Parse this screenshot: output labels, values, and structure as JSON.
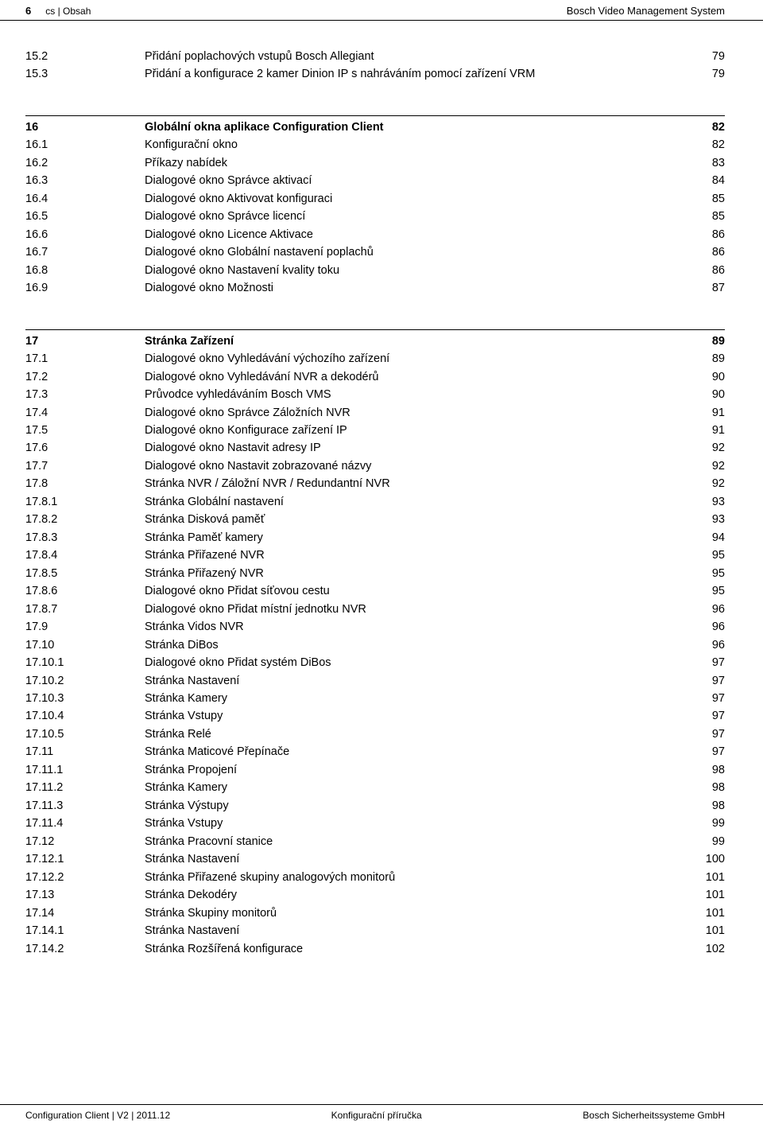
{
  "header": {
    "page_number": "6",
    "breadcrumb": "cs | Obsah",
    "product": "Bosch Video Management System"
  },
  "footer": {
    "left": "Configuration Client | V2 | 2011.12",
    "center": "Konfigurační příručka",
    "right": "Bosch Sicherheitssysteme GmbH"
  },
  "groups": [
    {
      "header": null,
      "rows": [
        {
          "num": "15.2",
          "title": "Přidání poplachových vstupů Bosch Allegiant",
          "page": "79"
        },
        {
          "num": "15.3",
          "title": "Přidání a konfigurace 2 kamer Dinion IP s nahráváním pomocí zařízení VRM",
          "page": "79"
        }
      ]
    },
    {
      "header": {
        "num": "16",
        "title": "Globální okna aplikace Configuration Client",
        "page": "82"
      },
      "rows": [
        {
          "num": "16.1",
          "title": "Konfigurační okno",
          "page": "82"
        },
        {
          "num": "16.2",
          "title": "Příkazy nabídek",
          "page": "83"
        },
        {
          "num": "16.3",
          "title": "Dialogové okno Správce aktivací",
          "page": "84"
        },
        {
          "num": "16.4",
          "title": "Dialogové okno Aktivovat konfiguraci",
          "page": "85"
        },
        {
          "num": "16.5",
          "title": "Dialogové okno Správce licencí",
          "page": "85"
        },
        {
          "num": "16.6",
          "title": "Dialogové okno Licence Aktivace",
          "page": "86"
        },
        {
          "num": "16.7",
          "title": "Dialogové okno Globální nastavení poplachů",
          "page": "86"
        },
        {
          "num": "16.8",
          "title": "Dialogové okno Nastavení kvality toku",
          "page": "86"
        },
        {
          "num": "16.9",
          "title": "Dialogové okno Možnosti",
          "page": "87"
        }
      ]
    },
    {
      "header": {
        "num": "17",
        "title": "Stránka Zařízení",
        "page": "89"
      },
      "rows": [
        {
          "num": "17.1",
          "title": "Dialogové okno Vyhledávání výchozího zařízení",
          "page": "89"
        },
        {
          "num": "17.2",
          "title": "Dialogové okno Vyhledávání NVR a dekodérů",
          "page": "90"
        },
        {
          "num": "17.3",
          "title": "Průvodce vyhledáváním Bosch VMS",
          "page": "90"
        },
        {
          "num": "17.4",
          "title": "Dialogové okno Správce Záložních NVR",
          "page": "91"
        },
        {
          "num": "17.5",
          "title": "Dialogové okno Konfigurace zařízení IP",
          "page": "91"
        },
        {
          "num": "17.6",
          "title": "Dialogové okno Nastavit adresy IP",
          "page": "92"
        },
        {
          "num": "17.7",
          "title": "Dialogové okno Nastavit zobrazované názvy",
          "page": "92"
        },
        {
          "num": "17.8",
          "title": "Stránka NVR / Záložní NVR / Redundantní NVR",
          "page": "92"
        },
        {
          "num": "17.8.1",
          "title": "Stránka Globální nastavení",
          "page": "93"
        },
        {
          "num": "17.8.2",
          "title": "Stránka Disková paměť",
          "page": "93"
        },
        {
          "num": "17.8.3",
          "title": "Stránka Paměť kamery",
          "page": "94"
        },
        {
          "num": "17.8.4",
          "title": "Stránka Přiřazené NVR",
          "page": "95"
        },
        {
          "num": "17.8.5",
          "title": "Stránka Přiřazený NVR",
          "page": "95"
        },
        {
          "num": "17.8.6",
          "title": "Dialogové okno Přidat síťovou cestu",
          "page": "95"
        },
        {
          "num": "17.8.7",
          "title": "Dialogové okno Přidat místní jednotku NVR",
          "page": "96"
        },
        {
          "num": "17.9",
          "title": "Stránka Vidos NVR",
          "page": "96"
        },
        {
          "num": "17.10",
          "title": "Stránka DiBos",
          "page": "96"
        },
        {
          "num": "17.10.1",
          "title": "Dialogové okno Přidat systém DiBos",
          "page": "97"
        },
        {
          "num": "17.10.2",
          "title": "Stránka Nastavení",
          "page": "97"
        },
        {
          "num": "17.10.3",
          "title": "Stránka Kamery",
          "page": "97"
        },
        {
          "num": "17.10.4",
          "title": "Stránka Vstupy",
          "page": "97"
        },
        {
          "num": "17.10.5",
          "title": "Stránka Relé",
          "page": "97"
        },
        {
          "num": "17.11",
          "title": "Stránka Maticové Přepínače",
          "page": "97"
        },
        {
          "num": "17.11.1",
          "title": "Stránka Propojení",
          "page": "98"
        },
        {
          "num": "17.11.2",
          "title": "Stránka Kamery",
          "page": "98"
        },
        {
          "num": "17.11.3",
          "title": "Stránka Výstupy",
          "page": "98"
        },
        {
          "num": "17.11.4",
          "title": "Stránka Vstupy",
          "page": "99"
        },
        {
          "num": "17.12",
          "title": "Stránka Pracovní stanice",
          "page": "99"
        },
        {
          "num": "17.12.1",
          "title": "Stránka Nastavení",
          "page": "100"
        },
        {
          "num": "17.12.2",
          "title": "Stránka Přiřazené skupiny analogových monitorů",
          "page": "101"
        },
        {
          "num": "17.13",
          "title": "Stránka Dekodéry",
          "page": "101"
        },
        {
          "num": "17.14",
          "title": "Stránka Skupiny monitorů",
          "page": "101"
        },
        {
          "num": "17.14.1",
          "title": "Stránka Nastavení",
          "page": "101"
        },
        {
          "num": "17.14.2",
          "title": "Stránka Rozšířená konfigurace",
          "page": "102"
        }
      ]
    }
  ]
}
